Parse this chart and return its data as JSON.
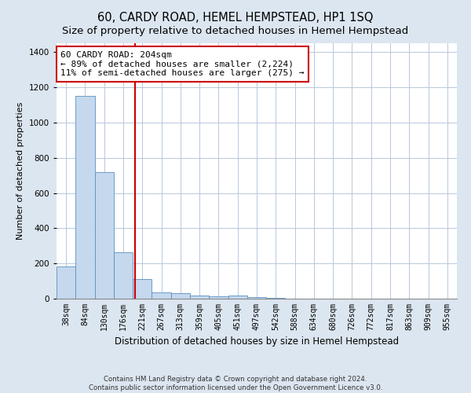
{
  "title": "60, CARDY ROAD, HEMEL HEMPSTEAD, HP1 1SQ",
  "subtitle": "Size of property relative to detached houses in Hemel Hempstead",
  "xlabel": "Distribution of detached houses by size in Hemel Hempstead",
  "ylabel": "Number of detached properties",
  "bin_labels": [
    "38sqm",
    "84sqm",
    "130sqm",
    "176sqm",
    "221sqm",
    "267sqm",
    "313sqm",
    "359sqm",
    "405sqm",
    "451sqm",
    "497sqm",
    "542sqm",
    "588sqm",
    "634sqm",
    "680sqm",
    "726sqm",
    "772sqm",
    "817sqm",
    "863sqm",
    "909sqm",
    "955sqm"
  ],
  "bar_heights": [
    185,
    1150,
    720,
    265,
    110,
    35,
    30,
    18,
    12,
    18,
    8,
    5,
    2,
    2,
    0,
    0,
    0,
    0,
    0,
    0,
    0
  ],
  "bar_color": "#c5d8ed",
  "bar_edge_color": "#5a8fc0",
  "property_line_x": 3.63,
  "annotation_line1": "60 CARDY ROAD: 204sqm",
  "annotation_line2": "← 89% of detached houses are smaller (2,224)",
  "annotation_line3": "11% of semi-detached houses are larger (275) →",
  "vline_color": "#cc0000",
  "ylim": [
    0,
    1450
  ],
  "yticks": [
    0,
    200,
    400,
    600,
    800,
    1000,
    1200,
    1400
  ],
  "footer_line1": "Contains HM Land Registry data © Crown copyright and database right 2024.",
  "footer_line2": "Contains public sector information licensed under the Open Government Licence v3.0.",
  "background_color": "#dce6f0",
  "plot_background": "#ffffff",
  "grid_color": "#b8c8dc",
  "title_fontsize": 10.5,
  "subtitle_fontsize": 9.5,
  "annotation_fontsize": 8,
  "ylabel_fontsize": 8,
  "xlabel_fontsize": 8.5,
  "tick_fontsize": 7
}
